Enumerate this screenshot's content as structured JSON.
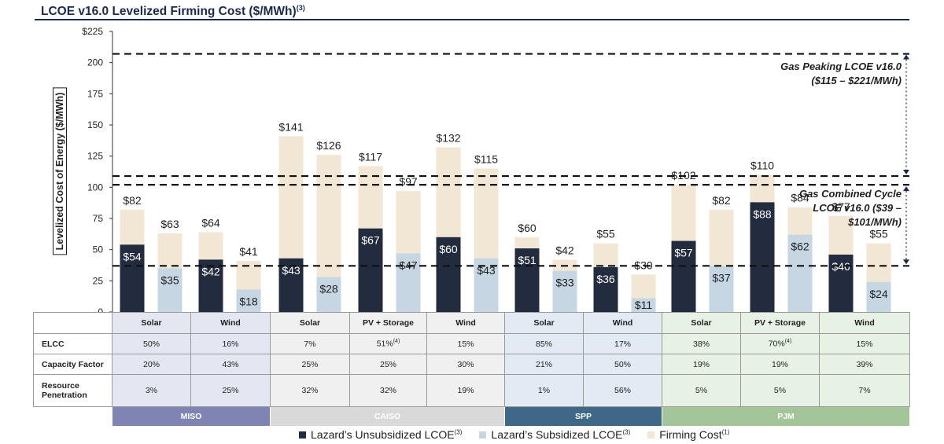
{
  "title": "LCOE v16.0 Levelized Firming Cost ($/MWh)",
  "title_note": "(3)",
  "colors": {
    "unsubsidized": "#232b3e",
    "subsidized": "#c6d6e3",
    "firming": "#f2e6d4",
    "miso": "#7f84b3",
    "caiso": "#d9d9d9",
    "spp": "#3f6886",
    "pjm": "#a4c49a"
  },
  "annotations": {
    "peaking_line1": "Gas Peaking LCOE v16.0",
    "peaking_line2": "($115 – $221/MWh)",
    "cc_line1": "Gas Combined Cycle",
    "cc_line2": "LCOE v16.0 ($39 –",
    "cc_line3": "$101/MWh)"
  },
  "table": {
    "rows": [
      {
        "label": "ELCC",
        "values": [
          "50%",
          "16%",
          "7%",
          "51%",
          "15%",
          "85%",
          "17%",
          "38%",
          "70%",
          "15%"
        ],
        "notes": [
          "",
          "",
          "",
          "(4)",
          "",
          "",
          "",
          "",
          "(4)",
          ""
        ]
      },
      {
        "label": "Capacity Factor",
        "values": [
          "20%",
          "43%",
          "25%",
          "25%",
          "30%",
          "21%",
          "50%",
          "19%",
          "19%",
          "39%"
        ]
      },
      {
        "label": "Resource Penetration",
        "values": [
          "3%",
          "25%",
          "32%",
          "32%",
          "19%",
          "1%",
          "56%",
          "5%",
          "5%",
          "7%"
        ]
      }
    ]
  },
  "legend": [
    {
      "label": "Lazard’s Unsubsidized LCOE",
      "note": "(3)",
      "color": "#232b3e"
    },
    {
      "label": "Lazard’s Subsidized LCOE",
      "note": "(3)",
      "color": "#c6d6e3"
    },
    {
      "label": "Firming Cost",
      "note": "(1)",
      "color": "#f2e6d4"
    }
  ],
  "chart_data": {
    "type": "bar",
    "title": "LCOE v16.0 Levelized Firming Cost ($/MWh)",
    "ylabel": "Levelized Cost of Energy ($/MWh)",
    "ylim": [
      0,
      225
    ],
    "yticks": [
      "$225",
      "200",
      "175",
      "150",
      "125",
      "100",
      "75",
      "50",
      "25",
      "0"
    ],
    "ytick_values": [
      225,
      200,
      175,
      150,
      125,
      100,
      75,
      50,
      25,
      0
    ],
    "reference_lines": [
      37,
      102,
      109,
      207
    ],
    "regions": [
      {
        "name": "MISO",
        "techs": [
          "Solar",
          "Wind"
        ]
      },
      {
        "name": "CAISO",
        "techs": [
          "Solar",
          "PV + Storage",
          "Wind"
        ]
      },
      {
        "name": "SPP",
        "techs": [
          "Solar",
          "Wind"
        ]
      },
      {
        "name": "PJM",
        "techs": [
          "Solar",
          "PV + Storage",
          "Wind"
        ]
      }
    ],
    "groups": [
      {
        "region": "MISO",
        "tech": "Solar",
        "unsub": {
          "base": 54,
          "total": 82,
          "base_label": "$54",
          "total_label": "$82"
        },
        "sub": {
          "base": 35,
          "total": 63,
          "base_label": "$35",
          "total_label": "$63"
        }
      },
      {
        "region": "MISO",
        "tech": "Wind",
        "unsub": {
          "base": 42,
          "total": 64,
          "base_label": "$42",
          "total_label": "$64"
        },
        "sub": {
          "base": 18,
          "total": 41,
          "base_label": "$18",
          "total_label": "$41"
        }
      },
      {
        "region": "CAISO",
        "tech": "Solar",
        "unsub": {
          "base": 43,
          "total": 141,
          "base_label": "$43",
          "total_label": "$141"
        },
        "sub": {
          "base": 28,
          "total": 126,
          "base_label": "$28",
          "total_label": "$126"
        }
      },
      {
        "region": "CAISO",
        "tech": "PV + Storage",
        "unsub": {
          "base": 67,
          "total": 117,
          "base_label": "$67",
          "total_label": "$117"
        },
        "sub": {
          "base": 47,
          "total": 97,
          "base_label": "$47",
          "total_label": "$97"
        }
      },
      {
        "region": "CAISO",
        "tech": "Wind",
        "unsub": {
          "base": 60,
          "total": 132,
          "base_label": "$60",
          "total_label": "$132"
        },
        "sub": {
          "base": 43,
          "total": 115,
          "base_label": "$43",
          "total_label": "$115"
        }
      },
      {
        "region": "SPP",
        "tech": "Solar",
        "unsub": {
          "base": 51,
          "total": 60,
          "base_label": "$51",
          "total_label": "$60"
        },
        "sub": {
          "base": 33,
          "total": 42,
          "base_label": "$33",
          "total_label": "$42"
        }
      },
      {
        "region": "SPP",
        "tech": "Wind",
        "unsub": {
          "base": 36,
          "total": 55,
          "base_label": "$36",
          "total_label": "$55"
        },
        "sub": {
          "base": 11,
          "total": 30,
          "base_label": "$11",
          "total_label": "$30"
        }
      },
      {
        "region": "PJM",
        "tech": "Solar",
        "unsub": {
          "base": 57,
          "total": 102,
          "base_label": "$57",
          "total_label": "$102"
        },
        "sub": {
          "base": 37,
          "total": 82,
          "base_label": "$37",
          "total_label": "$82"
        }
      },
      {
        "region": "PJM",
        "tech": "PV + Storage",
        "unsub": {
          "base": 88,
          "total": 110,
          "base_label": "$88",
          "total_label": "$110"
        },
        "sub": {
          "base": 62,
          "total": 84,
          "base_label": "$62",
          "total_label": "$84"
        }
      },
      {
        "region": "PJM",
        "tech": "Wind",
        "unsub": {
          "base": 46,
          "total": 77,
          "base_label": "$46",
          "total_label": "$77"
        },
        "sub": {
          "base": 24,
          "total": 55,
          "base_label": "$24",
          "total_label": "$55"
        }
      }
    ]
  }
}
